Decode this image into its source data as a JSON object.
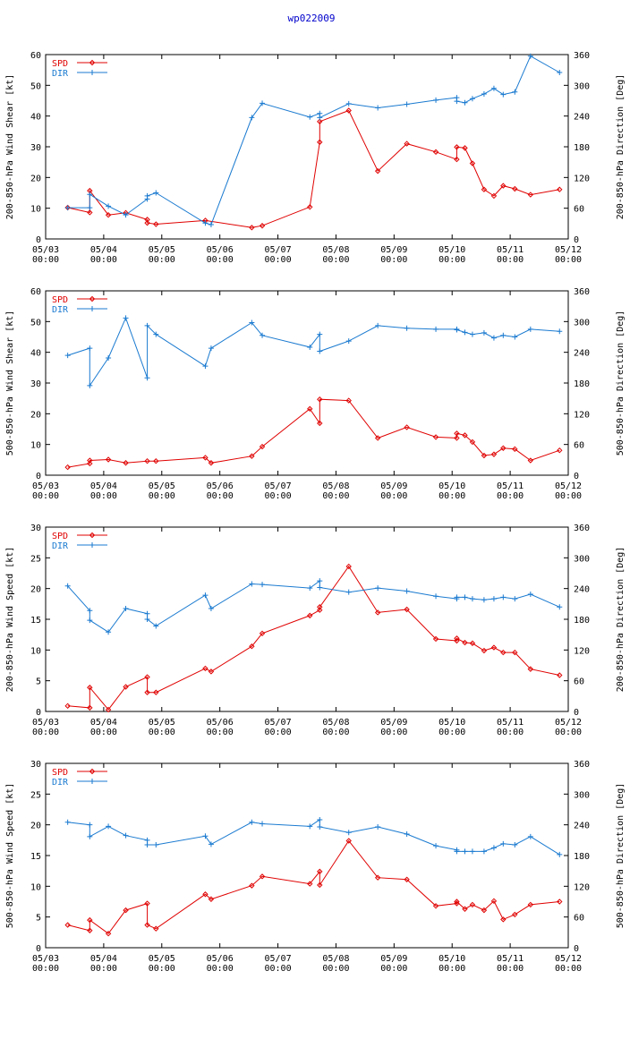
{
  "title": "wp022009",
  "colors": {
    "spd": "#e00000",
    "dir": "#1a7ad0"
  },
  "chart_data": [
    {
      "type": "line",
      "ylabel_left": "200-850-hPa Wind Shear [kt]",
      "ylabel_right": "200-850-hPa Direction [Deg]",
      "xlim": [
        0,
        9
      ],
      "ylim_left": [
        0,
        60
      ],
      "ylim_right": [
        0,
        360
      ],
      "yticks_left": [
        "0",
        "10",
        "20",
        "30",
        "40",
        "50",
        "60"
      ],
      "yticks_right": [
        "0",
        "60",
        "120",
        "180",
        "240",
        "300",
        "360"
      ],
      "xticks": [
        [
          "05/03",
          "00:00"
        ],
        [
          "05/04",
          "00:00"
        ],
        [
          "05/05",
          "00:00"
        ],
        [
          "05/06",
          "00:00"
        ],
        [
          "05/07",
          "00:00"
        ],
        [
          "05/08",
          "00:00"
        ],
        [
          "05/09",
          "00:00"
        ],
        [
          "05/10",
          "00:00"
        ],
        [
          "05/11",
          "00:00"
        ],
        [
          "05/12",
          "00:00"
        ]
      ],
      "legend": [
        "SPD",
        "DIR"
      ],
      "series": [
        {
          "name": "SPD",
          "axis": "left",
          "x": [
            0.38,
            0.76,
            0.76,
            1.08,
            1.38,
            1.75,
            1.75,
            1.9,
            2.75,
            3.55,
            3.73,
            4.55,
            4.72,
            4.72,
            5.22,
            5.72,
            6.22,
            6.72,
            7.08,
            7.08,
            7.22,
            7.35,
            7.55,
            7.72,
            7.88,
            8.08,
            8.35,
            8.85
          ],
          "y": [
            10.2,
            8.6,
            15.7,
            7.8,
            8.5,
            6.3,
            5.2,
            4.8,
            6.0,
            3.7,
            4.3,
            10.4,
            31.5,
            38.2,
            41.8,
            22.1,
            31.0,
            28.3,
            25.9,
            29.9,
            29.6,
            24.6,
            16.1,
            14.0,
            17.3,
            16.3,
            14.4,
            16.1
          ]
        },
        {
          "name": "DIR",
          "axis": "right",
          "x": [
            0.38,
            0.76,
            0.76,
            1.08,
            1.38,
            1.75,
            1.75,
            1.9,
            2.75,
            2.85,
            3.55,
            3.73,
            4.55,
            4.72,
            4.72,
            5.22,
            5.72,
            6.22,
            6.72,
            7.08,
            7.08,
            7.22,
            7.35,
            7.55,
            7.72,
            7.88,
            8.08,
            8.35,
            8.85
          ],
          "y": [
            61,
            61,
            87,
            64,
            47,
            78,
            84,
            90,
            31,
            28,
            237,
            265,
            238,
            245,
            237,
            264,
            256,
            263,
            271,
            276,
            269,
            266,
            274,
            283,
            294,
            282,
            287,
            357,
            325
          ]
        }
      ]
    },
    {
      "type": "line",
      "ylabel_left": "500-850-hPa Wind Shear [kt]",
      "ylabel_right": "500-850-hPa Direction [Deg]",
      "xlim": [
        0,
        9
      ],
      "ylim_left": [
        0,
        60
      ],
      "ylim_right": [
        0,
        360
      ],
      "yticks_left": [
        "0",
        "10",
        "20",
        "30",
        "40",
        "50",
        "60"
      ],
      "yticks_right": [
        "0",
        "60",
        "120",
        "180",
        "240",
        "300",
        "360"
      ],
      "xticks": [
        [
          "05/03",
          "00:00"
        ],
        [
          "05/04",
          "00:00"
        ],
        [
          "05/05",
          "00:00"
        ],
        [
          "05/06",
          "00:00"
        ],
        [
          "05/07",
          "00:00"
        ],
        [
          "05/08",
          "00:00"
        ],
        [
          "05/09",
          "00:00"
        ],
        [
          "05/10",
          "00:00"
        ],
        [
          "05/11",
          "00:00"
        ],
        [
          "05/12",
          "00:00"
        ]
      ],
      "legend": [
        "SPD",
        "DIR"
      ],
      "series": [
        {
          "name": "SPD",
          "axis": "left",
          "x": [
            0.38,
            0.76,
            0.76,
            1.08,
            1.38,
            1.75,
            1.9,
            2.75,
            2.85,
            3.55,
            3.73,
            4.55,
            4.72,
            4.72,
            5.22,
            5.72,
            6.22,
            6.72,
            7.08,
            7.08,
            7.22,
            7.35,
            7.55,
            7.72,
            7.88,
            8.08,
            8.35,
            8.85
          ],
          "y": [
            2.6,
            3.8,
            4.8,
            5.1,
            4.0,
            4.6,
            4.6,
            5.7,
            4.0,
            6.2,
            9.3,
            21.6,
            16.9,
            24.7,
            24.3,
            12.1,
            15.6,
            12.4,
            12.1,
            13.6,
            13.0,
            10.8,
            6.4,
            6.8,
            8.8,
            8.5,
            4.8,
            8.1
          ]
        },
        {
          "name": "DIR",
          "axis": "right",
          "x": [
            0.38,
            0.76,
            0.76,
            1.08,
            1.38,
            1.75,
            1.75,
            1.9,
            2.75,
            2.85,
            3.55,
            3.73,
            4.55,
            4.72,
            4.72,
            5.22,
            5.72,
            6.22,
            6.72,
            7.08,
            7.08,
            7.22,
            7.35,
            7.55,
            7.72,
            7.88,
            8.08,
            8.35,
            8.85
          ],
          "y": [
            234,
            248,
            175,
            229,
            307,
            190,
            292,
            275,
            213,
            248,
            298,
            273,
            250,
            275,
            242,
            262,
            292,
            287,
            285,
            285,
            284,
            279,
            275,
            278,
            268,
            273,
            270,
            285,
            281
          ]
        }
      ]
    },
    {
      "type": "line",
      "ylabel_left": "200-850-hPa Wind Speed [kt]",
      "ylabel_right": "200-850-hPa Direction [Deg]",
      "xlim": [
        0,
        9
      ],
      "ylim_left": [
        0,
        30
      ],
      "ylim_right": [
        0,
        360
      ],
      "yticks_left": [
        "0",
        "5",
        "10",
        "15",
        "20",
        "25",
        "30"
      ],
      "yticks_right": [
        "0",
        "60",
        "120",
        "180",
        "240",
        "300",
        "360"
      ],
      "xticks": [
        [
          "05/03",
          "00:00"
        ],
        [
          "05/04",
          "00:00"
        ],
        [
          "05/05",
          "00:00"
        ],
        [
          "05/06",
          "00:00"
        ],
        [
          "05/07",
          "00:00"
        ],
        [
          "05/08",
          "00:00"
        ],
        [
          "05/09",
          "00:00"
        ],
        [
          "05/10",
          "00:00"
        ],
        [
          "05/11",
          "00:00"
        ],
        [
          "05/12",
          "00:00"
        ]
      ],
      "legend": [
        "SPD",
        "DIR"
      ],
      "series": [
        {
          "name": "SPD",
          "axis": "left",
          "x": [
            0.38,
            0.76,
            0.76,
            1.08,
            1.38,
            1.75,
            1.75,
            1.9,
            2.75,
            2.85,
            3.55,
            3.73,
            4.55,
            4.72,
            4.72,
            5.22,
            5.72,
            6.22,
            6.72,
            7.08,
            7.08,
            7.22,
            7.35,
            7.55,
            7.72,
            7.88,
            8.08,
            8.35,
            8.85
          ],
          "y": [
            0.9,
            0.6,
            3.9,
            0.3,
            4.0,
            5.6,
            3.1,
            3.1,
            7.0,
            6.5,
            10.6,
            12.7,
            15.6,
            16.5,
            17.0,
            23.6,
            16.1,
            16.6,
            11.8,
            11.5,
            11.9,
            11.2,
            11.1,
            9.9,
            10.4,
            9.6,
            9.6,
            6.9,
            5.9
          ]
        },
        {
          "name": "DIR",
          "axis": "right",
          "x": [
            0.38,
            0.76,
            0.76,
            1.08,
            1.38,
            1.75,
            1.75,
            1.9,
            2.75,
            2.85,
            3.55,
            3.73,
            4.55,
            4.72,
            4.72,
            5.22,
            5.72,
            6.22,
            6.72,
            7.08,
            7.08,
            7.22,
            7.35,
            7.55,
            7.72,
            7.88,
            8.08,
            8.35,
            8.85
          ],
          "y": [
            245,
            197,
            178,
            155,
            201,
            191,
            180,
            167,
            227,
            201,
            249,
            248,
            241,
            255,
            242,
            233,
            241,
            235,
            225,
            220,
            223,
            223,
            220,
            218,
            220,
            223,
            220,
            229,
            204
          ]
        }
      ]
    },
    {
      "type": "line",
      "ylabel_left": "500-850-hPa Wind Speed [kt]",
      "ylabel_right": "500-850-hPa Direction [Deg]",
      "xlim": [
        0,
        9
      ],
      "ylim_left": [
        0,
        30
      ],
      "ylim_right": [
        0,
        360
      ],
      "yticks_left": [
        "0",
        "5",
        "10",
        "15",
        "20",
        "25",
        "30"
      ],
      "yticks_right": [
        "0",
        "60",
        "120",
        "180",
        "240",
        "300",
        "360"
      ],
      "xticks": [
        [
          "05/03",
          "00:00"
        ],
        [
          "05/04",
          "00:00"
        ],
        [
          "05/05",
          "00:00"
        ],
        [
          "05/06",
          "00:00"
        ],
        [
          "05/07",
          "00:00"
        ],
        [
          "05/08",
          "00:00"
        ],
        [
          "05/09",
          "00:00"
        ],
        [
          "05/10",
          "00:00"
        ],
        [
          "05/11",
          "00:00"
        ],
        [
          "05/12",
          "00:00"
        ]
      ],
      "legend": [
        "SPD",
        "DIR"
      ],
      "series": [
        {
          "name": "SPD",
          "axis": "left",
          "x": [
            0.38,
            0.76,
            0.76,
            1.08,
            1.38,
            1.75,
            1.75,
            1.9,
            2.75,
            2.85,
            3.55,
            3.73,
            4.55,
            4.72,
            4.72,
            5.22,
            5.72,
            6.22,
            6.72,
            7.08,
            7.08,
            7.22,
            7.35,
            7.55,
            7.72,
            7.88,
            8.08,
            8.35,
            8.85
          ],
          "y": [
            3.7,
            2.8,
            4.5,
            2.3,
            6.1,
            7.2,
            3.7,
            3.1,
            8.7,
            7.9,
            10.1,
            11.6,
            10.4,
            12.4,
            10.2,
            17.4,
            11.4,
            11.1,
            6.8,
            7.2,
            7.5,
            6.3,
            7.0,
            6.1,
            7.6,
            4.6,
            5.4,
            7.0,
            7.5
          ]
        },
        {
          "name": "DIR",
          "axis": "right",
          "x": [
            0.38,
            0.76,
            0.76,
            1.08,
            1.38,
            1.75,
            1.75,
            1.9,
            2.75,
            2.85,
            3.55,
            3.73,
            4.55,
            4.72,
            4.72,
            5.22,
            5.72,
            6.22,
            6.72,
            7.08,
            7.08,
            7.22,
            7.35,
            7.55,
            7.72,
            7.88,
            8.08,
            8.35,
            8.85
          ],
          "y": [
            245,
            240,
            217,
            237,
            219,
            210,
            201,
            201,
            218,
            202,
            245,
            242,
            237,
            250,
            236,
            225,
            236,
            222,
            199,
            191,
            188,
            188,
            188,
            188,
            195,
            203,
            201,
            217,
            182
          ]
        }
      ]
    }
  ]
}
